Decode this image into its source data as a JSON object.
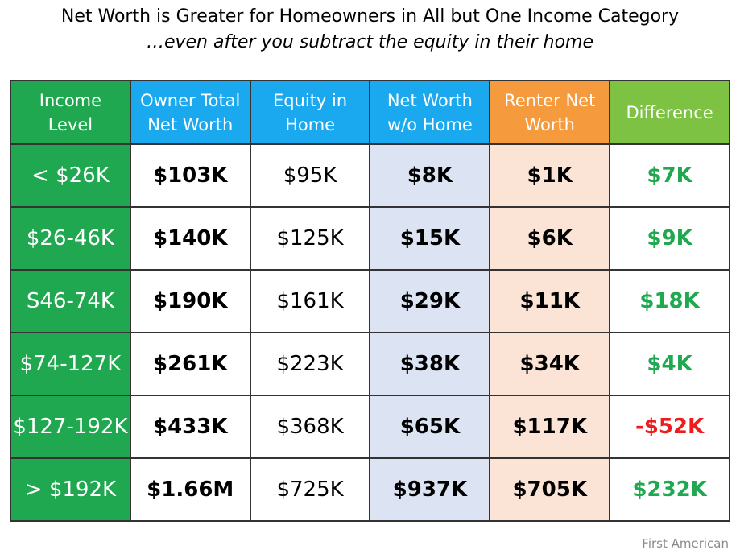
{
  "title": "Net Worth is Greater for Homeowners in All but One Income Category",
  "subtitle": "…even after you subtract the equity in their home",
  "source": "First American",
  "colors": {
    "income_green": "#1fa84f",
    "blue_header": "#1aa9ef",
    "orange_header": "#f59a3d",
    "light_green_header": "#7dc242",
    "positive_text": "#1fa84f",
    "negative_text": "#ee1c1c",
    "nwo_fill": "#dce4f3",
    "renter_fill": "#fbe4d5"
  },
  "chart_data": {
    "type": "table",
    "columns": [
      "Income Level",
      "Owner Total Net Worth",
      "Equity in Home",
      "Net Worth w/o Home",
      "Renter Net Worth",
      "Difference"
    ],
    "header_lines": [
      [
        "Income",
        "Level"
      ],
      [
        "Owner Total",
        "Net Worth"
      ],
      [
        "Equity in",
        "Home"
      ],
      [
        "Net Worth",
        "w/o Home"
      ],
      [
        "Renter Net",
        "Worth"
      ],
      [
        "Difference"
      ]
    ],
    "rows": [
      [
        "< $26K",
        "$103K",
        "$95K",
        "$8K",
        "$1K",
        "$7K"
      ],
      [
        "$26-46K",
        "$140K",
        "$125K",
        "$15K",
        "$6K",
        "$9K"
      ],
      [
        "S46-74K",
        "$190K",
        "$161K",
        "$29K",
        "$11K",
        "$18K"
      ],
      [
        "$74-127K",
        "$261K",
        "$223K",
        "$38K",
        "$34K",
        "$4K"
      ],
      [
        "$127-192K",
        "$433K",
        "$368K",
        "$65K",
        "$117K",
        "-$52K"
      ],
      [
        "> $192K",
        "$1.66M",
        "$725K",
        "$937K",
        "$705K",
        "$232K"
      ]
    ],
    "difference_values": [
      7,
      9,
      18,
      4,
      -52,
      232
    ],
    "difference_unit": "K"
  }
}
